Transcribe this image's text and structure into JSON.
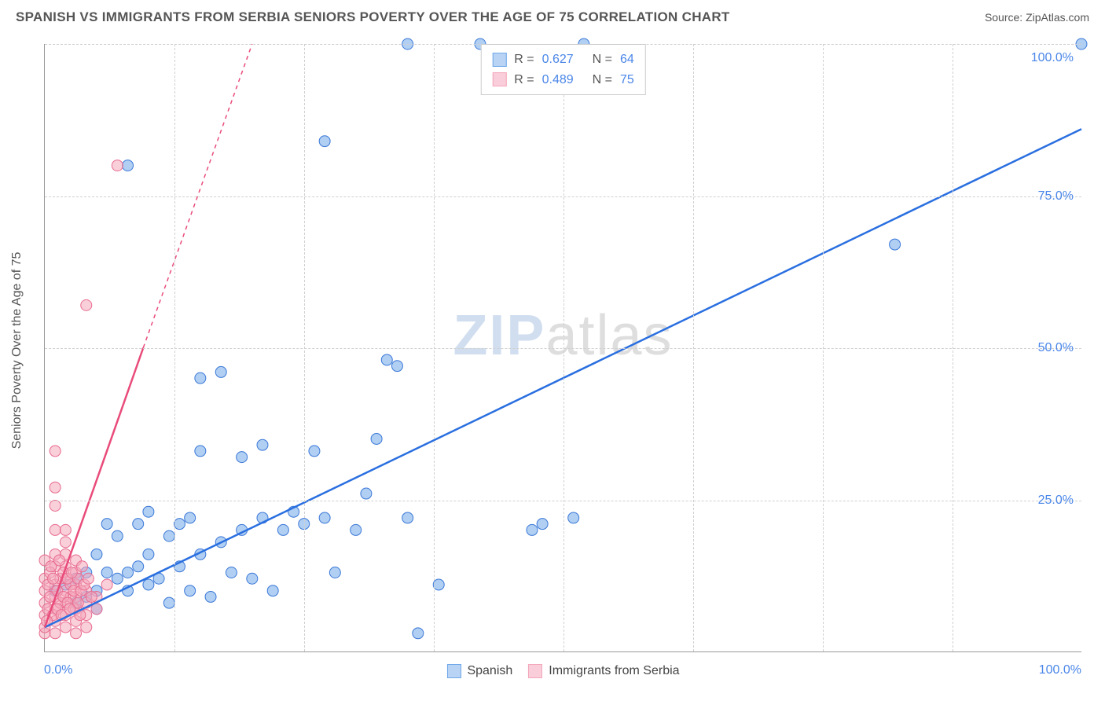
{
  "header": {
    "title": "SPANISH VS IMMIGRANTS FROM SERBIA SENIORS POVERTY OVER THE AGE OF 75 CORRELATION CHART",
    "source": "Source: ZipAtlas.com"
  },
  "chart": {
    "type": "scatter",
    "y_axis_label": "Seniors Poverty Over the Age of 75",
    "xlim": [
      0,
      100
    ],
    "ylim": [
      0,
      100
    ],
    "x_ticks": [
      0,
      50,
      100
    ],
    "y_ticks": [
      25,
      50,
      75,
      100
    ],
    "x_tick_labels": [
      "0.0%",
      "",
      "100.0%"
    ],
    "y_tick_labels": [
      "25.0%",
      "50.0%",
      "75.0%",
      "100.0%"
    ],
    "x_minor_grid": [
      12.5,
      25,
      37.5,
      50,
      62.5,
      75,
      87.5
    ],
    "y_grid": [
      25,
      50,
      75,
      100
    ],
    "background_color": "#ffffff",
    "grid_color": "#d8d8d8",
    "axis_color": "#999999",
    "tick_label_color": "#4a86e8",
    "label_color": "#555555",
    "marker_radius": 7,
    "marker_opacity": 0.55,
    "title_fontsize": 17,
    "label_fontsize": 16
  },
  "series": [
    {
      "name": "Spanish",
      "color": "#6fa8e8",
      "stroke": "#3b78d8",
      "line_color": "#2a6fe0",
      "line_width": 2.5,
      "line_dash": "none",
      "regression": {
        "start": [
          0,
          4
        ],
        "end": [
          100,
          86
        ]
      },
      "R": "0.627",
      "N": "64",
      "points": [
        [
          1,
          10
        ],
        [
          2,
          11
        ],
        [
          3,
          12
        ],
        [
          3,
          8
        ],
        [
          4,
          13
        ],
        [
          4,
          9
        ],
        [
          5,
          16
        ],
        [
          5,
          10
        ],
        [
          5,
          7
        ],
        [
          6,
          13
        ],
        [
          6,
          21
        ],
        [
          7,
          12
        ],
        [
          7,
          19
        ],
        [
          8,
          13
        ],
        [
          8,
          10
        ],
        [
          9,
          14
        ],
        [
          9,
          21
        ],
        [
          10,
          11
        ],
        [
          10,
          23
        ],
        [
          10,
          16
        ],
        [
          11,
          12
        ],
        [
          12,
          19
        ],
        [
          12,
          8
        ],
        [
          13,
          21
        ],
        [
          13,
          14
        ],
        [
          14,
          10
        ],
        [
          14,
          22
        ],
        [
          15,
          33
        ],
        [
          15,
          16
        ],
        [
          16,
          9
        ],
        [
          17,
          18
        ],
        [
          17,
          46
        ],
        [
          18,
          13
        ],
        [
          19,
          20
        ],
        [
          19,
          32
        ],
        [
          20,
          12
        ],
        [
          21,
          22
        ],
        [
          21,
          34
        ],
        [
          22,
          10
        ],
        [
          23,
          20
        ],
        [
          24,
          23
        ],
        [
          25,
          21
        ],
        [
          26,
          33
        ],
        [
          27,
          84
        ],
        [
          27,
          22
        ],
        [
          28,
          13
        ],
        [
          30,
          20
        ],
        [
          31,
          26
        ],
        [
          32,
          35
        ],
        [
          33,
          48
        ],
        [
          34,
          47
        ],
        [
          35,
          22
        ],
        [
          35,
          100
        ],
        [
          36,
          3
        ],
        [
          38,
          11
        ],
        [
          42,
          100
        ],
        [
          47,
          20
        ],
        [
          48,
          21
        ],
        [
          51,
          22
        ],
        [
          52,
          100
        ],
        [
          82,
          67
        ],
        [
          100,
          100
        ],
        [
          15,
          45
        ],
        [
          8,
          80
        ]
      ]
    },
    {
      "name": "Immigrants from Serbia",
      "color": "#f4a7bb",
      "stroke": "#e86b8f",
      "line_color": "#e94b7a",
      "line_width": 2.5,
      "line_dash": "5,5",
      "regression": {
        "start": [
          0,
          4
        ],
        "end": [
          20,
          100
        ]
      },
      "solid_regression_end": [
        9.5,
        50
      ],
      "R": "0.489",
      "N": "75",
      "points": [
        [
          0,
          6
        ],
        [
          0,
          8
        ],
        [
          0,
          10
        ],
        [
          0,
          12
        ],
        [
          0,
          3
        ],
        [
          1,
          7
        ],
        [
          1,
          9
        ],
        [
          1,
          11
        ],
        [
          1,
          14
        ],
        [
          1,
          24
        ],
        [
          1,
          27
        ],
        [
          1,
          5
        ],
        [
          1,
          33
        ],
        [
          2,
          8
        ],
        [
          2,
          10
        ],
        [
          2,
          12
        ],
        [
          2,
          14
        ],
        [
          2,
          16
        ],
        [
          2,
          6
        ],
        [
          2,
          4
        ],
        [
          3,
          9
        ],
        [
          3,
          11
        ],
        [
          3,
          13
        ],
        [
          3,
          7
        ],
        [
          3,
          5
        ],
        [
          3,
          3
        ],
        [
          4,
          10
        ],
        [
          4,
          8
        ],
        [
          4,
          6
        ],
        [
          4,
          4
        ],
        [
          4,
          57
        ],
        [
          5,
          9
        ],
        [
          5,
          7
        ],
        [
          6,
          11
        ],
        [
          7,
          80
        ],
        [
          1,
          20
        ],
        [
          2,
          20
        ],
        [
          0,
          15
        ],
        [
          0,
          4
        ],
        [
          1,
          3
        ],
        [
          1,
          16
        ],
        [
          2,
          18
        ],
        [
          3,
          15
        ],
        [
          0.5,
          13
        ],
        [
          0.5,
          9
        ],
        [
          1.5,
          12
        ],
        [
          1.5,
          8
        ],
        [
          2.5,
          11
        ],
        [
          2.5,
          9
        ],
        [
          0.3,
          7
        ],
        [
          0.3,
          11
        ],
        [
          0.8,
          6
        ],
        [
          0.8,
          12
        ],
        [
          1.2,
          10
        ],
        [
          1.2,
          7
        ],
        [
          1.8,
          9
        ],
        [
          1.8,
          13
        ],
        [
          2.2,
          8
        ],
        [
          2.2,
          12
        ],
        [
          2.8,
          10
        ],
        [
          2.8,
          7
        ],
        [
          3.2,
          12
        ],
        [
          3.2,
          8
        ],
        [
          3.5,
          10
        ],
        [
          3.8,
          11
        ],
        [
          4.2,
          12
        ],
        [
          4.5,
          9
        ],
        [
          0.2,
          5
        ],
        [
          0.6,
          14
        ],
        [
          1.4,
          15
        ],
        [
          1.6,
          6
        ],
        [
          2.4,
          7
        ],
        [
          2.6,
          13
        ],
        [
          3.4,
          6
        ],
        [
          3.6,
          14
        ]
      ]
    }
  ],
  "legend_top": {
    "rows": [
      {
        "swatch_fill": "#b9d3f5",
        "swatch_stroke": "#6fa8e8",
        "r_label": "R =",
        "r_value": "0.627",
        "n_label": "N =",
        "n_value": "64",
        "value_color": "#4a86e8"
      },
      {
        "swatch_fill": "#f9cdd9",
        "swatch_stroke": "#f4a7bb",
        "r_label": "R =",
        "r_value": "0.489",
        "n_label": "N =",
        "n_value": "75",
        "value_color": "#4a86e8"
      }
    ]
  },
  "legend_bottom": {
    "items": [
      {
        "swatch_fill": "#b9d3f5",
        "swatch_stroke": "#6fa8e8",
        "label": "Spanish"
      },
      {
        "swatch_fill": "#f9cdd9",
        "swatch_stroke": "#f4a7bb",
        "label": "Immigrants from Serbia"
      }
    ]
  },
  "watermark": {
    "prefix": "ZIP",
    "suffix": "atlas"
  }
}
